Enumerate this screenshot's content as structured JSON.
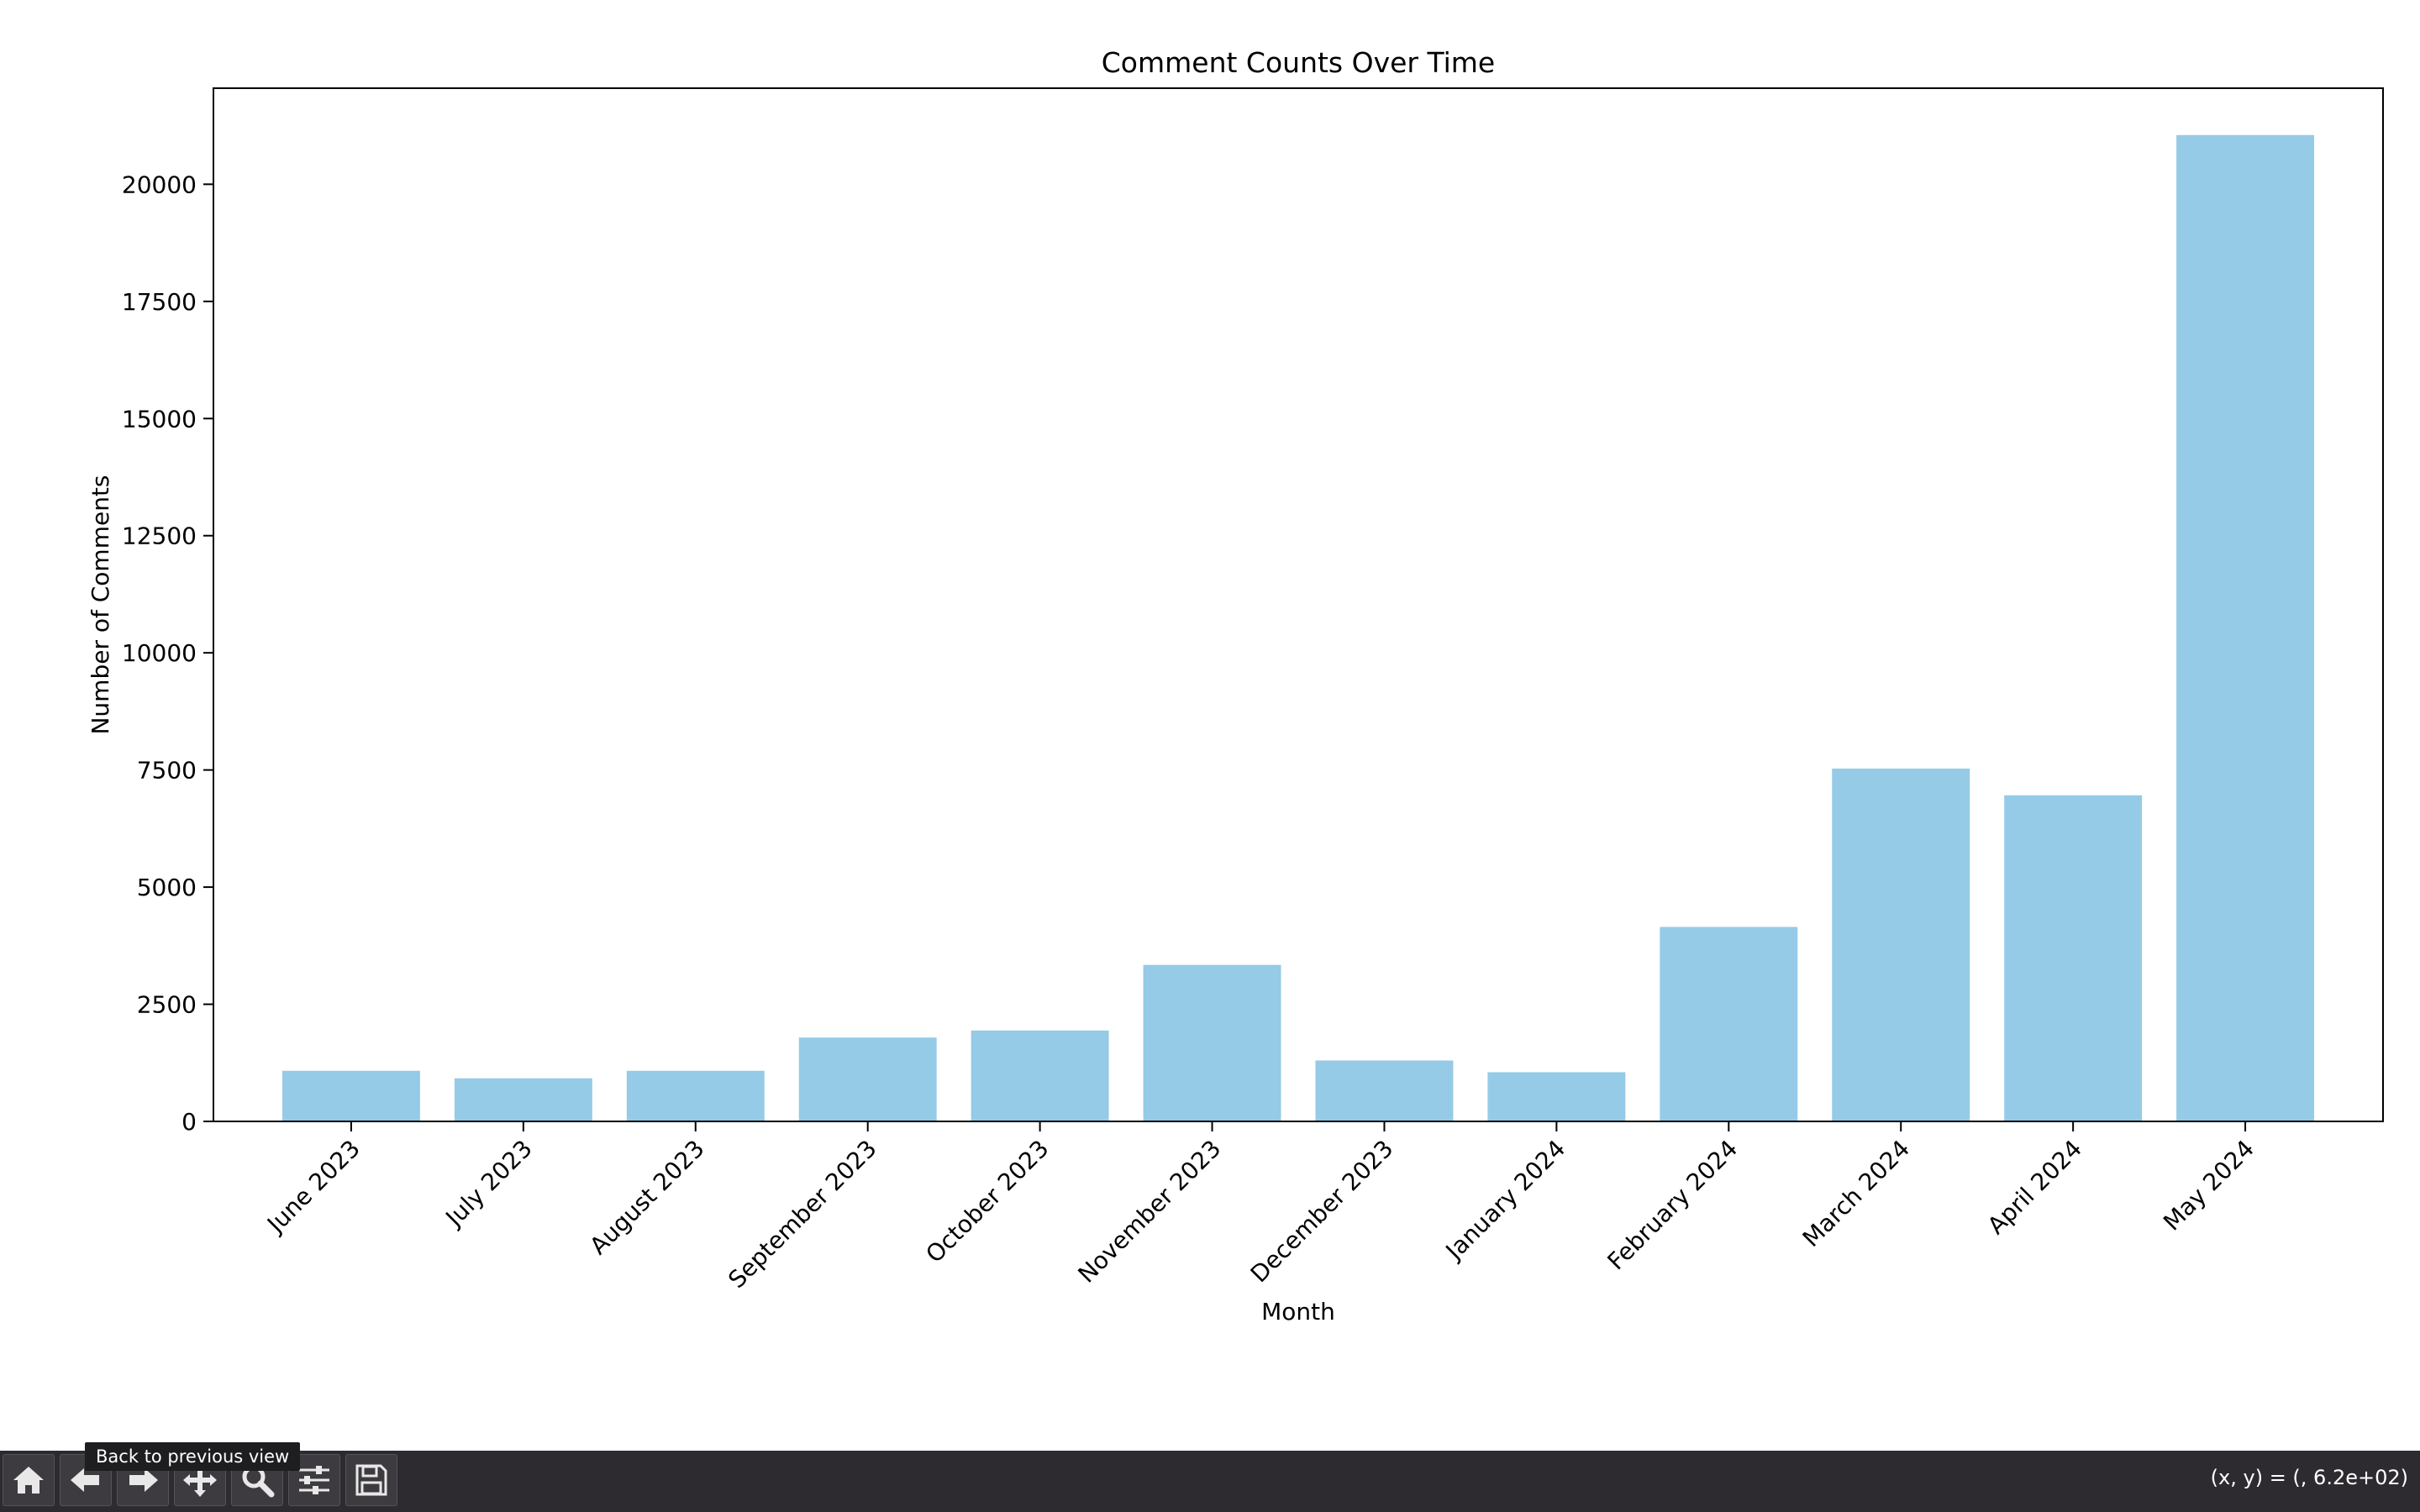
{
  "window": {
    "tooltip": "Back to previous view",
    "coordinates": "(x, y) = (, 6.2e+02)",
    "toolbar": [
      {
        "name": "home-button",
        "icon": "home-icon"
      },
      {
        "name": "back-button",
        "icon": "arrow-left-icon"
      },
      {
        "name": "forward-button",
        "icon": "arrow-right-icon"
      },
      {
        "name": "pan-button",
        "icon": "move-icon"
      },
      {
        "name": "zoom-button",
        "icon": "magnifier-icon"
      },
      {
        "name": "configure-subplots-button",
        "icon": "sliders-icon"
      },
      {
        "name": "save-button",
        "icon": "floppy-disk-icon"
      }
    ]
  },
  "chart_data": {
    "type": "bar",
    "title": "Comment Counts Over Time",
    "xlabel": "Month",
    "ylabel": "Number of Comments",
    "categories": [
      "June 2023",
      "July 2023",
      "August 2023",
      "September 2023",
      "October 2023",
      "November 2023",
      "December 2023",
      "January 2024",
      "February 2024",
      "March 2024",
      "April 2024",
      "May 2024"
    ],
    "values": [
      1080,
      920,
      1080,
      1790,
      1940,
      3340,
      1300,
      1050,
      4150,
      7530,
      6960,
      21050
    ],
    "ylim": [
      0,
      22050
    ],
    "yticks": [
      0,
      2500,
      5000,
      7500,
      10000,
      12500,
      15000,
      17500,
      20000
    ],
    "bar_color": "#95cbe6",
    "grid": false,
    "legend": false
  }
}
